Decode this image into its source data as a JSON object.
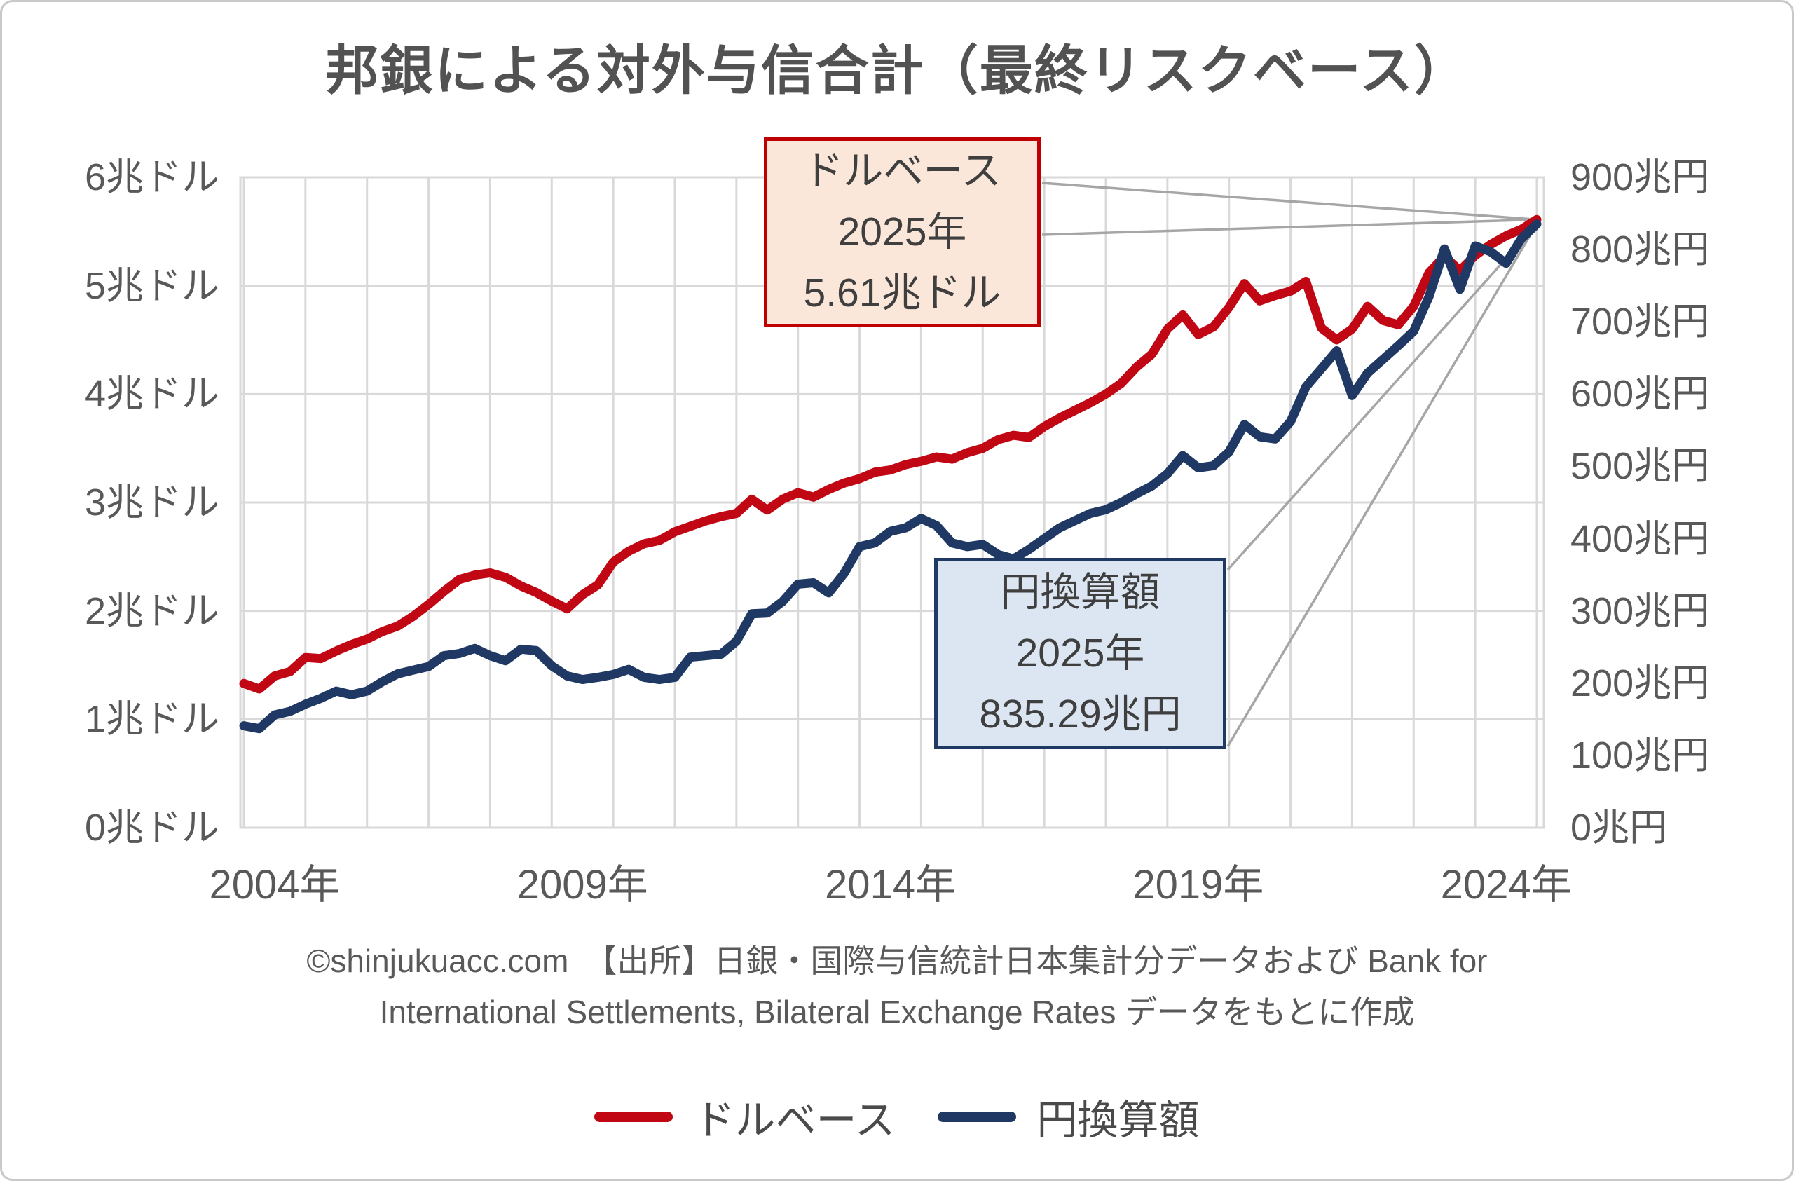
{
  "title": "邦銀による対外与信合計（最終リスクベース）",
  "source": {
    "line1": "©shinjukuacc.com　【出所】日銀・国際与信統計日本集計分データおよび Bank for",
    "line2": "International Settlements, Bilateral Exchange Rates データをもとに作成"
  },
  "legend": {
    "items": [
      {
        "label": "ドルベース",
        "color": "#c00713"
      },
      {
        "label": "円換算額",
        "color": "#1f3864"
      }
    ]
  },
  "colors": {
    "grid": "#d9d9d9",
    "plot_border": "#d9d9d9",
    "leader_line": "#a6a6a6",
    "axis_text": "#595959",
    "title_text": "#525252",
    "dollar_series": "#c00713",
    "yen_series": "#1f3864",
    "dollar_callout_fill": "#fbe7da",
    "dollar_callout_border": "#c00000",
    "yen_callout_fill": "#dce6f2",
    "yen_callout_border": "#1f3864"
  },
  "chart_data": {
    "type": "line",
    "title": "邦銀による対外与信合計（最終リスクベース）",
    "x_start": 2004,
    "x_step": 0.25,
    "x_axis": {
      "tick_labels": [
        "2004年",
        "2009年",
        "2014年",
        "2019年",
        "2024年"
      ],
      "tick_years": [
        2004,
        2009,
        2014,
        2019,
        2024
      ],
      "range": [
        2004,
        2025.25
      ],
      "gridline_interval_years": 1
    },
    "left_axis": {
      "unit": "兆ドル",
      "min": 0,
      "max": 6,
      "labels_top_to_bottom": [
        "6兆ドル",
        "5兆ドル",
        "4兆ドル",
        "3兆ドル",
        "2兆ドル",
        "1兆ドル",
        "0兆ドル"
      ]
    },
    "right_axis": {
      "unit": "兆円",
      "min": 0,
      "max": 900,
      "labels_top_to_bottom": [
        "900兆円",
        "800兆円",
        "700兆円",
        "600兆円",
        "500兆円",
        "400兆円",
        "300兆円",
        "200兆円",
        "100兆円",
        "0兆円"
      ]
    },
    "grid": true,
    "legend_position": "bottom",
    "series": [
      {
        "name": "ドルベース",
        "axis": "left",
        "unit": "兆ドル",
        "color": "#c00713",
        "final_point": {
          "year": 2025,
          "value": 5.61
        },
        "values": [
          1.33,
          1.28,
          1.4,
          1.44,
          1.57,
          1.56,
          1.63,
          1.69,
          1.74,
          1.81,
          1.86,
          1.95,
          2.06,
          2.18,
          2.29,
          2.33,
          2.35,
          2.31,
          2.23,
          2.17,
          2.09,
          2.02,
          2.15,
          2.24,
          2.45,
          2.55,
          2.62,
          2.65,
          2.73,
          2.78,
          2.83,
          2.87,
          2.9,
          3.03,
          2.93,
          3.03,
          3.09,
          3.05,
          3.12,
          3.18,
          3.22,
          3.28,
          3.3,
          3.35,
          3.38,
          3.42,
          3.4,
          3.46,
          3.5,
          3.58,
          3.62,
          3.6,
          3.7,
          3.78,
          3.85,
          3.92,
          4.0,
          4.1,
          4.25,
          4.37,
          4.6,
          4.73,
          4.55,
          4.62,
          4.8,
          5.02,
          4.86,
          4.91,
          4.95,
          5.04,
          4.61,
          4.5,
          4.6,
          4.81,
          4.68,
          4.64,
          4.81,
          5.12,
          5.27,
          5.14,
          5.28,
          5.38,
          5.46,
          5.52,
          5.61
        ]
      },
      {
        "name": "円換算額",
        "axis": "right",
        "unit": "兆円",
        "color": "#1f3864",
        "final_point": {
          "year": 2025,
          "value": 835.29
        },
        "values": [
          141,
          137,
          156,
          161,
          171,
          179,
          189,
          184,
          189,
          202,
          213,
          218,
          223,
          238,
          241,
          248,
          238,
          231,
          247,
          245,
          224,
          210,
          205,
          208,
          212,
          219,
          208,
          205,
          208,
          236,
          238,
          240,
          258,
          296,
          297,
          313,
          337,
          339,
          325,
          352,
          389,
          394,
          410,
          415,
          428,
          418,
          394,
          389,
          392,
          378,
          372,
          385,
          400,
          415,
          425,
          435,
          440,
          450,
          462,
          473,
          490,
          515,
          498,
          501,
          520,
          558,
          541,
          538,
          562,
          610,
          635,
          660,
          598,
          629,
          648,
          667,
          687,
          735,
          801,
          745,
          805,
          797,
          781,
          815,
          835.29
        ]
      }
    ],
    "callouts": [
      {
        "id": "dollar",
        "lines": [
          "ドルベース",
          "2025年",
          "5.61兆ドル"
        ],
        "border": "#c00000",
        "fill": "#fbe7da"
      },
      {
        "id": "yen",
        "lines": [
          "円換算額",
          "2025年",
          "835.29兆円"
        ],
        "border": "#1f3864",
        "fill": "#dce6f2"
      }
    ]
  }
}
